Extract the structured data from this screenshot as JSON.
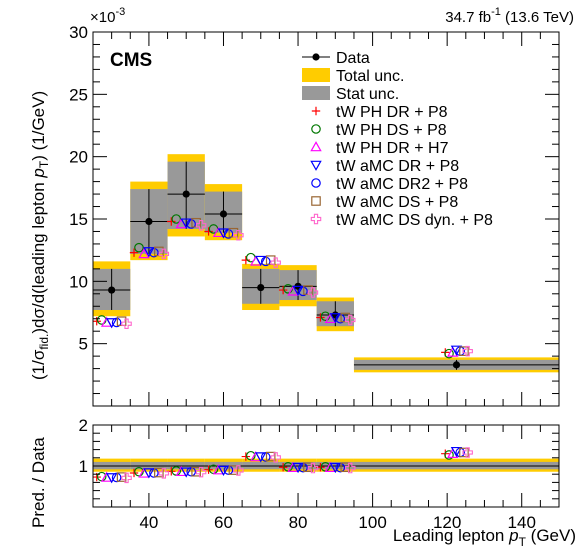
{
  "colors": {
    "total_unc": "#ffcc00",
    "stat_unc": "#999999",
    "data": "#000000"
  },
  "chart_data": {
    "type": "scatter",
    "experiment": "CMS",
    "lumi_main": "34.7 fb",
    "lumi_sup": "-1",
    "lumi_tail": " (13.6 TeV)",
    "y_exponent_prefix": "×10",
    "y_exponent_power": "-3",
    "xlabel_main": "Leading lepton ",
    "xlabel_sym": "p",
    "xlabel_sub": "T",
    "xlabel_unit": " (GeV)",
    "ylabel_main": "(1/σ",
    "ylabel_sub": "fid.",
    "ylabel_mid": ")dσ/d(leading lepton ",
    "ylabel_sym": "p",
    "ylabel_tsub": "T",
    "ylabel_unit": ") (1/GeV)",
    "ratio_ylabel": "Pred. / Data",
    "xlim": [
      25,
      150
    ],
    "ylim": [
      0,
      30
    ],
    "ratio_ylim": [
      0,
      2
    ],
    "x_ticks": [
      40,
      60,
      80,
      100,
      120,
      140
    ],
    "y_ticks": [
      5,
      10,
      15,
      20,
      25,
      30
    ],
    "ratio_ticks": [
      1,
      2
    ],
    "bins": [
      {
        "lo": 25,
        "hi": 35,
        "data": 9.3,
        "total_lo": 7.2,
        "total_hi": 11.6,
        "stat_lo": 7.7,
        "stat_hi": 11.0
      },
      {
        "lo": 35,
        "hi": 45,
        "data": 14.8,
        "total_lo": 11.7,
        "total_hi": 18.0,
        "stat_lo": 12.2,
        "stat_hi": 17.4
      },
      {
        "lo": 45,
        "hi": 55,
        "data": 17.0,
        "total_lo": 13.6,
        "total_hi": 20.2,
        "stat_lo": 14.2,
        "stat_hi": 19.6
      },
      {
        "lo": 55,
        "hi": 65,
        "data": 15.4,
        "total_lo": 13.3,
        "total_hi": 17.8,
        "stat_lo": 13.9,
        "stat_hi": 17.2
      },
      {
        "lo": 65,
        "hi": 75,
        "data": 9.5,
        "total_lo": 7.7,
        "total_hi": 11.4,
        "stat_lo": 8.2,
        "stat_hi": 11.0
      },
      {
        "lo": 75,
        "hi": 85,
        "data": 9.6,
        "total_lo": 8.0,
        "total_hi": 11.3,
        "stat_lo": 8.5,
        "stat_hi": 10.9
      },
      {
        "lo": 85,
        "hi": 95,
        "data": 7.3,
        "total_lo": 6.0,
        "total_hi": 8.7,
        "stat_lo": 6.4,
        "stat_hi": 8.4
      },
      {
        "lo": 95,
        "hi": 150,
        "data": 3.3,
        "total_lo": 2.7,
        "total_hi": 3.9,
        "stat_lo": 2.9,
        "stat_hi": 3.7
      }
    ],
    "ratio_total_band": [
      0.86,
      1.18
    ],
    "ratio_stat_band": [
      0.92,
      1.1
    ],
    "series": [
      {
        "name": "tW PH DR + P8",
        "marker": "plus",
        "color": "#ff0000",
        "values": [
          6.8,
          12.3,
          14.8,
          14.0,
          11.7,
          9.3,
          7.1,
          4.3
        ],
        "ratio": [
          0.73,
          0.83,
          0.87,
          0.91,
          1.23,
          0.97,
          0.97,
          1.3
        ]
      },
      {
        "name": "tW PH DS + P8",
        "marker": "circle",
        "color": "#007700",
        "values": [
          6.9,
          12.7,
          15.0,
          14.2,
          11.9,
          9.4,
          7.2,
          4.2
        ],
        "ratio": [
          0.74,
          0.86,
          0.88,
          0.92,
          1.25,
          0.98,
          0.98,
          1.27
        ]
      },
      {
        "name": "tW PH DR + H7",
        "marker": "triangle-up",
        "color": "#ff00ff",
        "values": [
          6.7,
          12.2,
          14.6,
          13.9,
          11.6,
          9.2,
          7.0,
          4.3
        ],
        "ratio": [
          0.72,
          0.82,
          0.86,
          0.9,
          1.22,
          0.96,
          0.96,
          1.3
        ]
      },
      {
        "name": "tW aMC DR + P8",
        "marker": "triangle-down",
        "color": "#0000ff",
        "values": [
          6.7,
          12.4,
          14.7,
          13.9,
          11.7,
          9.3,
          7.1,
          4.5
        ],
        "ratio": [
          0.72,
          0.84,
          0.86,
          0.9,
          1.23,
          0.97,
          0.97,
          1.36
        ]
      },
      {
        "name": "tW aMC DR2 + P8",
        "marker": "circle",
        "color": "#0000ff",
        "values": [
          6.7,
          12.3,
          14.6,
          13.8,
          11.6,
          9.2,
          7.0,
          4.4
        ],
        "ratio": [
          0.72,
          0.83,
          0.86,
          0.9,
          1.22,
          0.96,
          0.96,
          1.33
        ]
      },
      {
        "name": "tW aMC DS + P8",
        "marker": "square",
        "color": "#996633",
        "values": [
          6.8,
          12.4,
          14.7,
          13.9,
          11.7,
          9.3,
          7.1,
          4.4
        ],
        "ratio": [
          0.73,
          0.84,
          0.86,
          0.9,
          1.23,
          0.97,
          0.97,
          1.33
        ]
      },
      {
        "name": "tW aMC DS dyn. + P8",
        "marker": "cross-open",
        "color": "#ff66cc",
        "values": [
          6.6,
          12.2,
          14.5,
          13.7,
          11.5,
          9.1,
          6.9,
          4.4
        ],
        "ratio": [
          0.71,
          0.82,
          0.85,
          0.89,
          1.21,
          0.95,
          0.95,
          1.33
        ]
      }
    ],
    "legend": {
      "data_label": "Data",
      "total_label": "Total unc.",
      "stat_label": "Stat unc.",
      "placement": "top-right"
    }
  }
}
